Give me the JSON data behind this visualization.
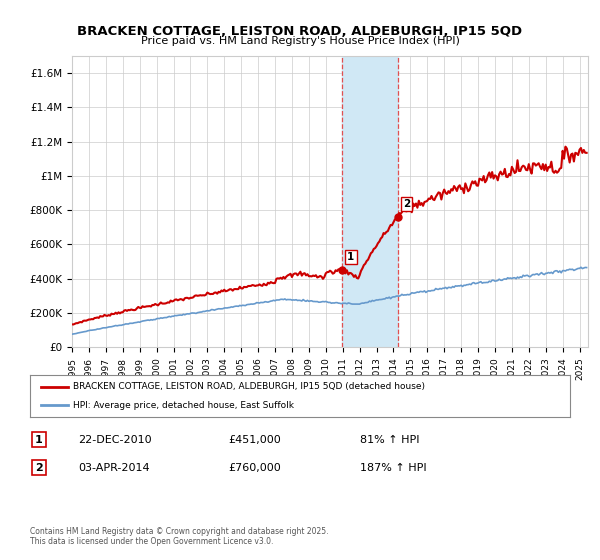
{
  "title": "BRACKEN COTTAGE, LEISTON ROAD, ALDEBURGH, IP15 5QD",
  "subtitle": "Price paid vs. HM Land Registry's House Price Index (HPI)",
  "ylim": [
    0,
    1700000
  ],
  "yticks": [
    0,
    200000,
    400000,
    600000,
    800000,
    1000000,
    1200000,
    1400000,
    1600000
  ],
  "ytick_labels": [
    "£0",
    "£200K",
    "£400K",
    "£600K",
    "£800K",
    "£1M",
    "£1.2M",
    "£1.4M",
    "£1.6M"
  ],
  "xlim_start": 1995.0,
  "xlim_end": 2025.5,
  "xtick_years": [
    1995,
    1996,
    1997,
    1998,
    1999,
    2000,
    2001,
    2002,
    2003,
    2004,
    2005,
    2006,
    2007,
    2008,
    2009,
    2010,
    2011,
    2012,
    2013,
    2014,
    2015,
    2016,
    2017,
    2018,
    2019,
    2020,
    2021,
    2022,
    2023,
    2024,
    2025
  ],
  "sale1_x": 2010.97,
  "sale1_y": 451000,
  "sale1_label": "1",
  "sale2_x": 2014.25,
  "sale2_y": 760000,
  "sale2_label": "2",
  "vspan_x1": 2010.97,
  "vspan_x2": 2014.25,
  "vspan_color": "#d0e8f5",
  "vline_color": "#e05050",
  "vline_style": "--",
  "house_line_color": "#cc0000",
  "hpi_line_color": "#6699cc",
  "legend_house_label": "BRACKEN COTTAGE, LEISTON ROAD, ALDEBURGH, IP15 5QD (detached house)",
  "legend_hpi_label": "HPI: Average price, detached house, East Suffolk",
  "note1_num": "1",
  "note1_date": "22-DEC-2010",
  "note1_price": "£451,000",
  "note1_hpi": "81% ↑ HPI",
  "note2_num": "2",
  "note2_date": "03-APR-2014",
  "note2_price": "£760,000",
  "note2_hpi": "187% ↑ HPI",
  "footer": "Contains HM Land Registry data © Crown copyright and database right 2025.\nThis data is licensed under the Open Government Licence v3.0.",
  "background_color": "#ffffff",
  "grid_color": "#cccccc"
}
